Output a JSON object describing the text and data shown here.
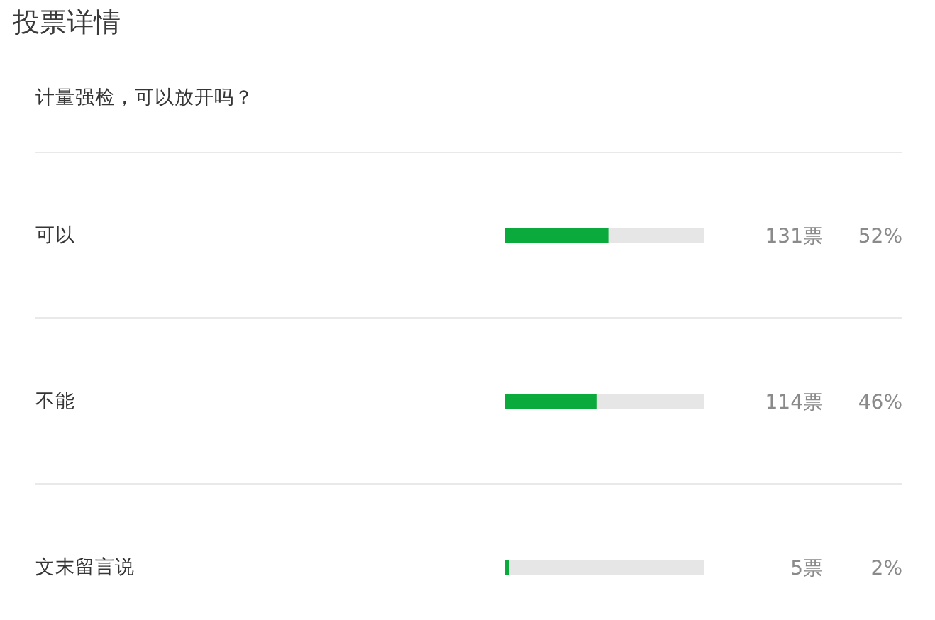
{
  "chart_data": {
    "type": "bar",
    "orientation": "horizontal",
    "title": "投票详情",
    "subtitle": "计量强检，可以放开吗？",
    "categories": [
      "可以",
      "不能",
      "文末留言说"
    ],
    "values": [
      52,
      46,
      2
    ],
    "value_labels": [
      "52%",
      "46%",
      "2%"
    ],
    "color": "#0aab3c",
    "xlim": [
      0,
      100
    ],
    "tick_labels": "y",
    "grid": "y",
    "annotations": [
      "131票",
      "114票",
      "5票"
    ]
  }
}
